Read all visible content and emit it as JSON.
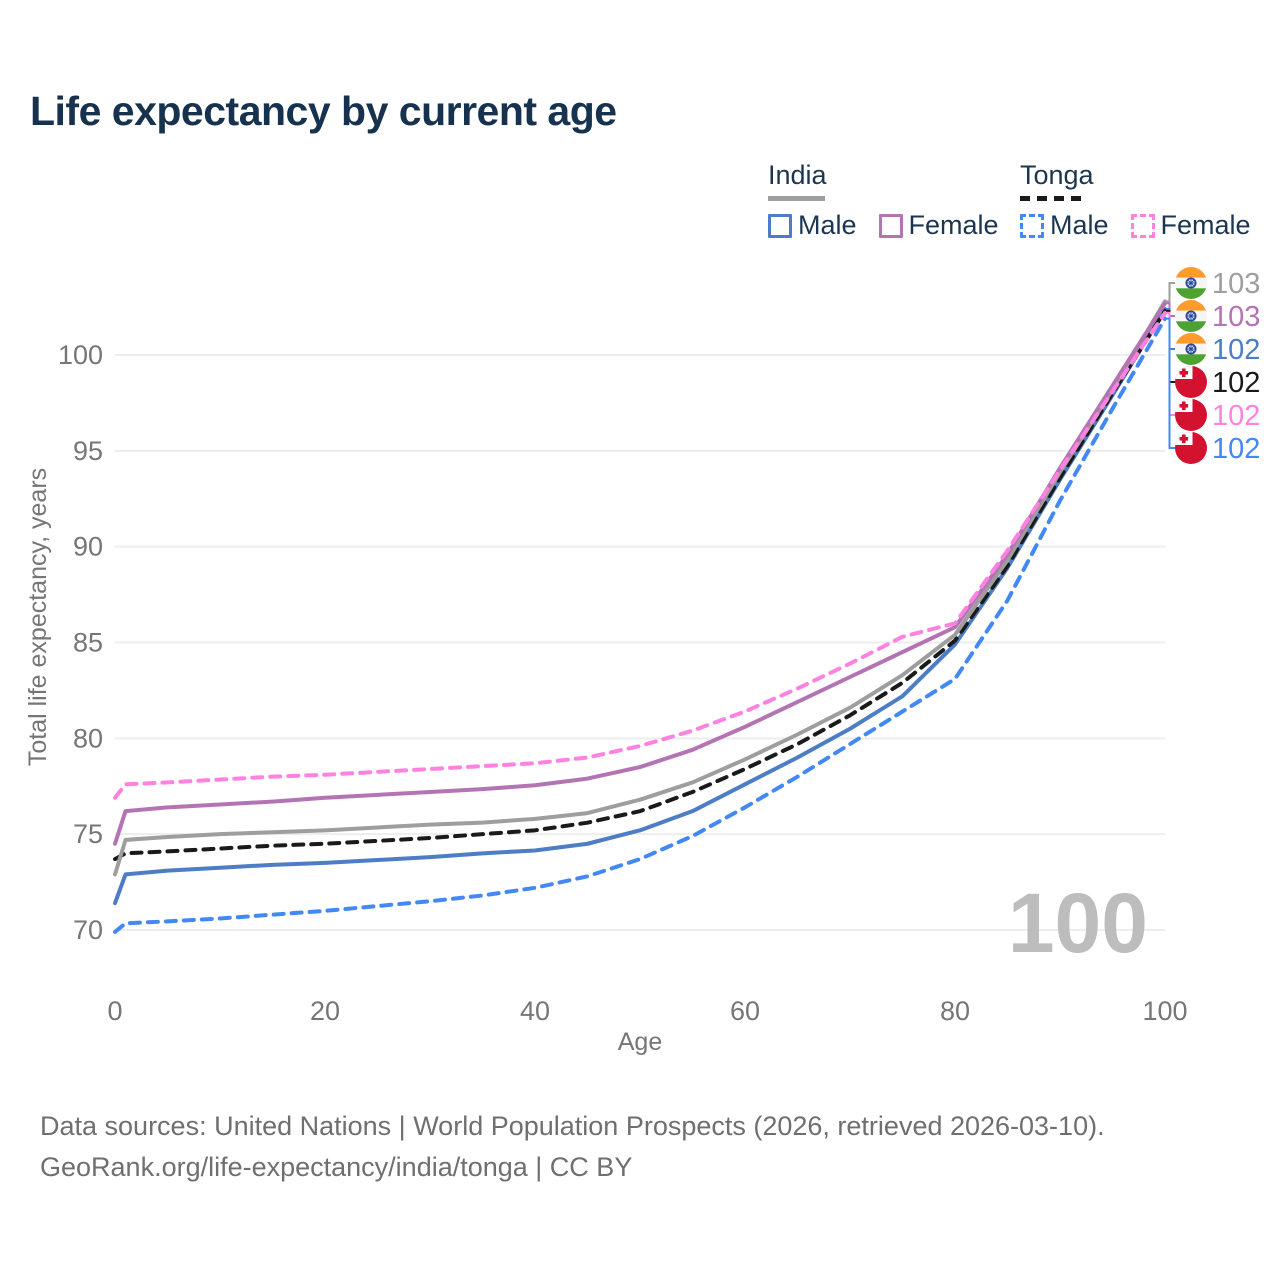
{
  "title": "Life expectancy by current age",
  "legend": {
    "groups": [
      {
        "label": "India",
        "line_style": "solid",
        "underline_color": "#9e9e9e",
        "items": [
          {
            "label": "Male",
            "color": "#4d7dc4",
            "line_style": "solid"
          },
          {
            "label": "Female",
            "color": "#b474b4",
            "line_style": "solid"
          }
        ]
      },
      {
        "label": "Tonga",
        "line_style": "dashed",
        "underline_color": "#1a1a1a",
        "items": [
          {
            "label": "Male",
            "color": "#4289f5",
            "line_style": "dashed"
          },
          {
            "label": "Female",
            "color": "#ff82e0",
            "line_style": "dashed"
          }
        ]
      }
    ]
  },
  "chart_data": {
    "type": "line",
    "title": "Life expectancy by current age",
    "xlabel": "Age",
    "ylabel": "Total life expectancy, years",
    "xlim": [
      0,
      100
    ],
    "ylim": [
      68.5,
      103.5
    ],
    "xticks": [
      0,
      20,
      40,
      60,
      80,
      100
    ],
    "yticks": [
      70,
      75,
      80,
      85,
      90,
      95,
      100
    ],
    "grid": "horizontal",
    "legend_position": "top-right",
    "watermark": "100",
    "x": [
      0,
      1,
      5,
      10,
      15,
      20,
      25,
      30,
      35,
      40,
      45,
      50,
      55,
      60,
      65,
      70,
      75,
      80,
      85,
      90,
      95,
      100
    ],
    "series": [
      {
        "id": "tonga-male",
        "name": "Tonga Male",
        "country": "tonga",
        "color": "#4289f5",
        "line_style": "dashed",
        "end_label": "102",
        "values": [
          69.9,
          70.35,
          70.45,
          70.6,
          70.8,
          71.0,
          71.25,
          71.5,
          71.8,
          72.2,
          72.8,
          73.7,
          74.9,
          76.4,
          78.0,
          79.7,
          81.4,
          83.1,
          87.2,
          92.4,
          97.2,
          101.9
        ]
      },
      {
        "id": "india-male",
        "name": "India Male",
        "country": "india",
        "color": "#4d7dc4",
        "line_style": "solid",
        "end_label": "102",
        "values": [
          71.4,
          72.9,
          73.1,
          73.25,
          73.4,
          73.5,
          73.65,
          73.8,
          74.0,
          74.15,
          74.5,
          75.2,
          76.2,
          77.6,
          79.0,
          80.5,
          82.2,
          84.9,
          88.9,
          93.5,
          97.9,
          102.4
        ]
      },
      {
        "id": "tonga-total",
        "name": "Tonga",
        "country": "tonga",
        "color": "#1a1a1a",
        "line_style": "dashed",
        "end_label": "102",
        "values": [
          73.7,
          74.0,
          74.1,
          74.25,
          74.4,
          74.5,
          74.65,
          74.8,
          75.0,
          75.2,
          75.6,
          76.2,
          77.2,
          78.4,
          79.7,
          81.2,
          82.9,
          85.1,
          89.0,
          93.6,
          98.0,
          102.3
        ]
      },
      {
        "id": "india-total",
        "name": "India",
        "country": "india",
        "color": "#9e9e9e",
        "line_style": "solid",
        "end_label": "103",
        "values": [
          72.9,
          74.7,
          74.85,
          75.0,
          75.1,
          75.2,
          75.35,
          75.5,
          75.6,
          75.8,
          76.1,
          76.8,
          77.7,
          78.9,
          80.2,
          81.6,
          83.3,
          85.4,
          89.3,
          93.9,
          98.2,
          102.8
        ]
      },
      {
        "id": "india-female",
        "name": "India Female",
        "country": "india",
        "color": "#b474b4",
        "line_style": "solid",
        "end_label": "103",
        "values": [
          74.5,
          76.2,
          76.4,
          76.55,
          76.7,
          76.9,
          77.05,
          77.2,
          77.35,
          77.55,
          77.9,
          78.5,
          79.4,
          80.6,
          81.9,
          83.2,
          84.5,
          85.8,
          89.6,
          94.1,
          98.4,
          102.7
        ]
      },
      {
        "id": "tonga-female",
        "name": "Tonga Female",
        "country": "tonga",
        "color": "#ff82e0",
        "line_style": "dashed",
        "end_label": "102",
        "values": [
          76.9,
          77.6,
          77.7,
          77.85,
          78.0,
          78.1,
          78.25,
          78.4,
          78.55,
          78.7,
          79.0,
          79.6,
          80.4,
          81.4,
          82.6,
          83.9,
          85.3,
          86.0,
          89.8,
          94.0,
          98.1,
          102.2
        ]
      }
    ]
  },
  "footer": {
    "line1": "Data sources: United Nations | World Population Prospects (2026, retrieved 2026-03-10).",
    "line2": "GeoRank.org/life-expectancy/india/tonga | CC BY"
  }
}
